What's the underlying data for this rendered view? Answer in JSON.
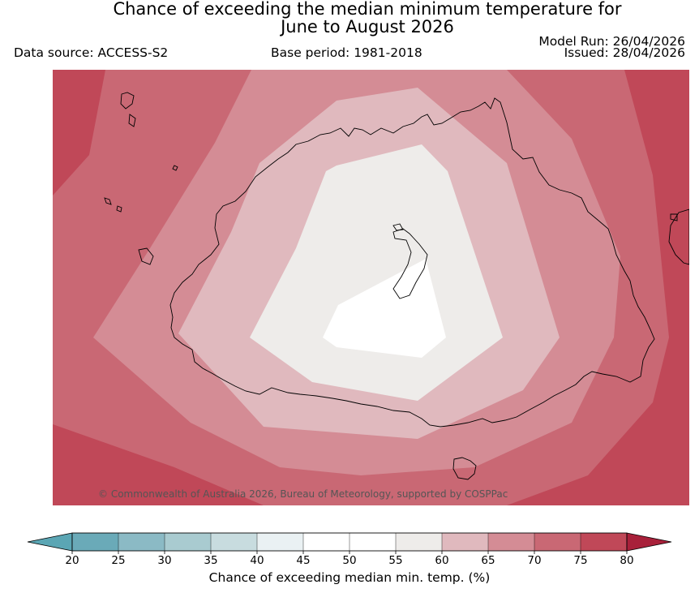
{
  "header": {
    "title_line1": "Chance of exceeding the median minimum temperature for",
    "title_line2": "June to August 2026",
    "data_source": "Data source: ACCESS-S2",
    "base_period": "Base period: 1981-2018",
    "model_run": "Model Run: 26/04/2026",
    "issued": "Issued: 28/04/2026"
  },
  "map": {
    "region": "Australia",
    "copyright": "© Commonwealth of Australia 2026, Bureau of Meteorology, supported by COSPPac",
    "fill_colors": {
      "above_75": "#c04858",
      "70_75": "#c96874",
      "65_70": "#d48c95",
      "60_65": "#e0b9be",
      "55_60": "#eeecea",
      "50_55": "#ffffff",
      "coastline": "#000000"
    }
  },
  "colorbar": {
    "label": "Chance of exceeding median min. temp. (%)",
    "ticks": [
      "20",
      "25",
      "30",
      "35",
      "40",
      "45",
      "50",
      "55",
      "60",
      "65",
      "70",
      "75",
      "80"
    ],
    "colors": [
      "#6aaab8",
      "#8bbac5",
      "#a9cbd0",
      "#c8dcdf",
      "#eaf1f3",
      "#ffffff",
      "#ffffff",
      "#eeecea",
      "#e0b9be",
      "#d48c95",
      "#c96874",
      "#c04858"
    ],
    "under_color": "#5ba6b4",
    "over_color": "#a8203a"
  }
}
